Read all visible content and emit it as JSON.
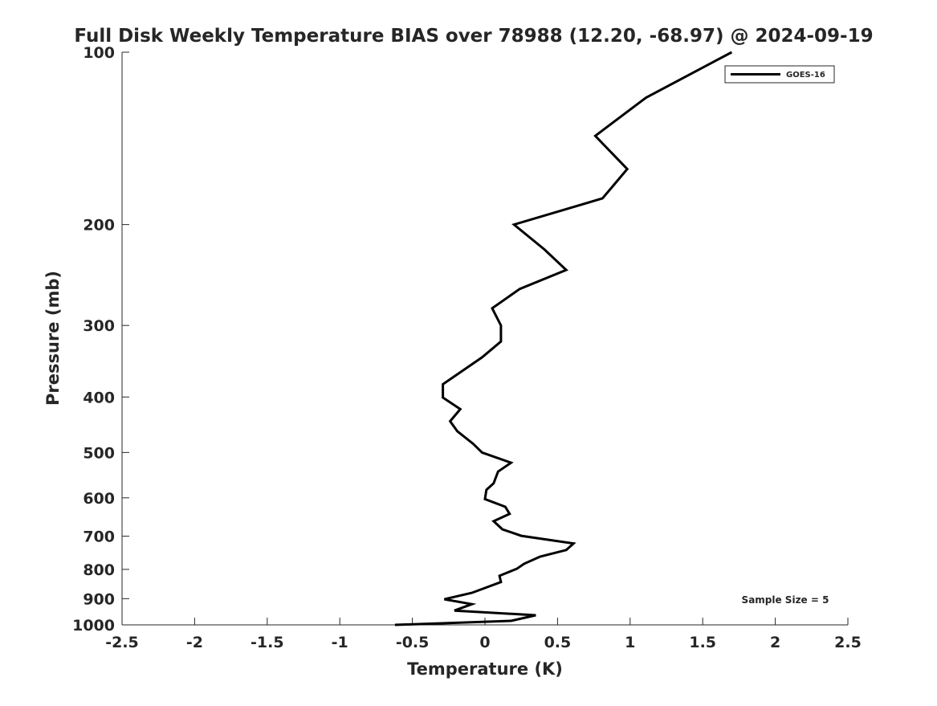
{
  "chart_data": {
    "type": "line",
    "title": "Full Disk Weekly Temperature BIAS over 78988 (12.20, -68.97) @ 2024-09-19",
    "xlabel": "Temperature (K)",
    "ylabel": "Pressure (mb)",
    "xlim": [
      -2.5,
      2.5
    ],
    "ylim": [
      1000,
      100
    ],
    "yscale": "log",
    "y_reversed": true,
    "grid": false,
    "xticks": [
      "-2.5",
      "-2",
      "-1.5",
      "-1",
      "-0.5",
      "0",
      "0.5",
      "1",
      "1.5",
      "2",
      "2.5"
    ],
    "yticks": [
      "100",
      "200",
      "300",
      "400",
      "500",
      "600",
      "700",
      "800",
      "900",
      "1000"
    ],
    "legend": {
      "placement": "top-right",
      "entries": [
        "GOES-16"
      ]
    },
    "annotation": "Sample Size = 5",
    "series": [
      {
        "name": "GOES-16",
        "color": "#000000",
        "points": [
          [
            1.7,
            100
          ],
          [
            1.11,
            120
          ],
          [
            0.76,
            140
          ],
          [
            0.98,
            160
          ],
          [
            0.81,
            180
          ],
          [
            0.2,
            200
          ],
          [
            0.41,
            221
          ],
          [
            0.56,
            240
          ],
          [
            0.24,
            259
          ],
          [
            0.05,
            280
          ],
          [
            0.11,
            300
          ],
          [
            0.11,
            320
          ],
          [
            -0.02,
            341
          ],
          [
            -0.29,
            380
          ],
          [
            -0.29,
            401
          ],
          [
            -0.17,
            420
          ],
          [
            -0.24,
            441
          ],
          [
            -0.19,
            459
          ],
          [
            -0.08,
            483
          ],
          [
            -0.02,
            500
          ],
          [
            0.18,
            521
          ],
          [
            0.09,
            540
          ],
          [
            0.06,
            566
          ],
          [
            0.01,
            581
          ],
          [
            0.0,
            603
          ],
          [
            0.14,
            622
          ],
          [
            0.17,
            640
          ],
          [
            0.06,
            659
          ],
          [
            0.12,
            681
          ],
          [
            0.25,
            699
          ],
          [
            0.61,
            721
          ],
          [
            0.56,
            740
          ],
          [
            0.38,
            760
          ],
          [
            0.27,
            782
          ],
          [
            0.22,
            798
          ],
          [
            0.1,
            821
          ],
          [
            0.11,
            842
          ],
          [
            -0.09,
            879
          ],
          [
            -0.28,
            902
          ],
          [
            -0.09,
            920
          ],
          [
            -0.21,
            944
          ],
          [
            0.35,
            962
          ],
          [
            0.18,
            984
          ],
          [
            -0.62,
            1000
          ]
        ]
      }
    ]
  }
}
